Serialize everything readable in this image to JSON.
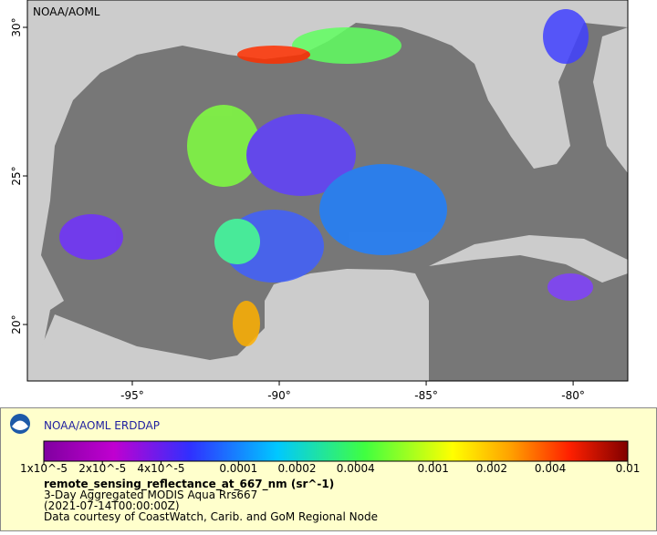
{
  "map": {
    "corner_label": "NOAA/AOML",
    "xlim": [
      -98.57,
      -78.14
    ],
    "ylim": [
      18.1,
      30.92
    ],
    "xticks": [
      {
        "value": -95,
        "label": "-95°"
      },
      {
        "value": -90,
        "label": "-90°"
      },
      {
        "value": -85,
        "label": "-85°"
      },
      {
        "value": -80,
        "label": "-80°"
      }
    ],
    "yticks": [
      {
        "value": 20,
        "label": "20°"
      },
      {
        "value": 25,
        "label": "25°"
      },
      {
        "value": 30,
        "label": "30°"
      }
    ]
  },
  "legend": {
    "heading": "NOAA/AOML ERDDAP",
    "colorbar": {
      "scale": "log",
      "lim": [
        1e-05,
        0.01
      ],
      "ticks": [
        {
          "value": 1e-05,
          "label": "1x10^-5"
        },
        {
          "value": 2e-05,
          "label": "2x10^-5"
        },
        {
          "value": 4e-05,
          "label": "4x10^-5"
        },
        0.0001,
        0.0002,
        0.0004,
        0.001,
        0.002,
        0.004,
        0.01
      ]
    },
    "variable": "remote_sensing_reflectance_at_667_nm (sr^-1)",
    "dataset": "3-Day Aggregated MODIS Aqua Rrs667",
    "time": "(2021-07-14T00:00:00Z)",
    "credit": "Data courtesy of CoastWatch, Carib. and GoM Regional Node"
  }
}
